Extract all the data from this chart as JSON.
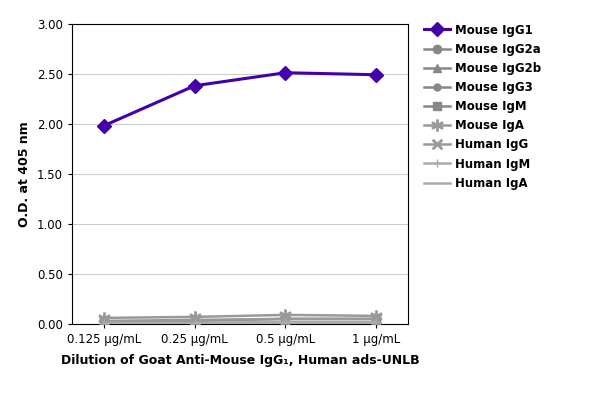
{
  "x_labels": [
    "0.125 μg/mL",
    "0.25 μg/mL",
    "0.5 μg/mL",
    "1 μg/mL"
  ],
  "x_values": [
    0,
    1,
    2,
    3
  ],
  "series": [
    {
      "label": "Mouse IgG1",
      "values": [
        1.98,
        2.38,
        2.51,
        2.49
      ],
      "color": "#4400aa",
      "marker": "D",
      "linewidth": 2.2,
      "markersize": 7,
      "zorder": 5
    },
    {
      "label": "Mouse IgG2a",
      "values": [
        0.01,
        0.01,
        0.01,
        0.01
      ],
      "color": "#888888",
      "marker": "o",
      "linewidth": 1.8,
      "markersize": 6,
      "zorder": 4
    },
    {
      "label": "Mouse IgG2b",
      "values": [
        0.01,
        0.01,
        0.01,
        0.01
      ],
      "color": "#888888",
      "marker": "^",
      "linewidth": 1.8,
      "markersize": 6,
      "zorder": 4
    },
    {
      "label": "Mouse IgG3",
      "values": [
        0.01,
        0.01,
        0.01,
        0.01
      ],
      "color": "#888888",
      "marker": "o",
      "linewidth": 1.8,
      "markersize": 5,
      "zorder": 4
    },
    {
      "label": "Mouse IgM",
      "values": [
        0.02,
        0.03,
        0.05,
        0.05
      ],
      "color": "#888888",
      "marker": "s",
      "linewidth": 1.8,
      "markersize": 6,
      "zorder": 4
    },
    {
      "label": "Mouse IgA",
      "values": [
        0.06,
        0.07,
        0.09,
        0.08
      ],
      "color": "#999999",
      "marker": "$*$",
      "linewidth": 1.8,
      "markersize": 8,
      "zorder": 4
    },
    {
      "label": "Human IgG",
      "values": [
        0.03,
        0.04,
        0.05,
        0.05
      ],
      "color": "#999999",
      "marker": "$\\times$",
      "linewidth": 1.8,
      "markersize": 7,
      "zorder": 4
    },
    {
      "label": "Human IgM",
      "values": [
        0.01,
        0.01,
        0.02,
        0.02
      ],
      "color": "#aaaaaa",
      "marker": "+",
      "linewidth": 1.8,
      "markersize": 6,
      "zorder": 4
    },
    {
      "label": "Human IgA",
      "values": [
        0.01,
        0.01,
        0.01,
        0.01
      ],
      "color": "#aaaaaa",
      "marker": "None",
      "linewidth": 1.8,
      "markersize": 0,
      "zorder": 4
    }
  ],
  "ylabel": "O.D. at 405 nm",
  "xlabel": "Dilution of Goat Anti-Mouse IgG₁, Human ads-UNLB",
  "ylim": [
    0.0,
    3.0
  ],
  "yticks": [
    0.0,
    0.5,
    1.0,
    1.5,
    2.0,
    2.5,
    3.0
  ],
  "ytick_labels": [
    "0.00",
    "0.50",
    "1.00",
    "1.50",
    "2.00",
    "2.50",
    "3.00"
  ],
  "background_color": "#ffffff",
  "grid_color": "#cccccc",
  "figsize": [
    6.0,
    3.95
  ],
  "dpi": 100
}
